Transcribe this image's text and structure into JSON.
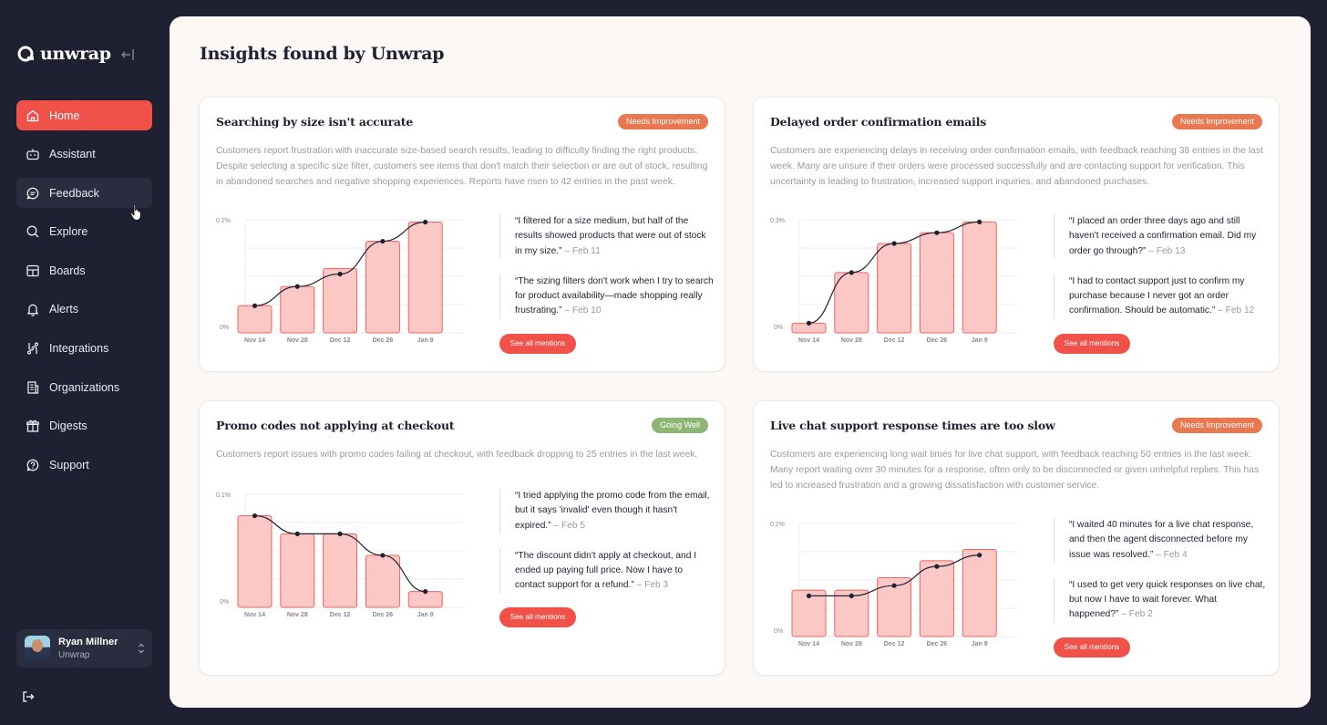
{
  "brand": {
    "name": "unwrap"
  },
  "colors": {
    "accent": "#f0524a",
    "needs_improvement": "#e8784f",
    "going_well": "#8fb575",
    "sidebar_bg": "#1f2132"
  },
  "nav": [
    {
      "label": "Home",
      "icon": "home-icon"
    },
    {
      "label": "Assistant",
      "icon": "robot-icon"
    },
    {
      "label": "Feedback",
      "icon": "chat-bubble-icon"
    },
    {
      "label": "Explore",
      "icon": "search-icon"
    },
    {
      "label": "Boards",
      "icon": "boards-icon"
    },
    {
      "label": "Alerts",
      "icon": "bell-icon"
    },
    {
      "label": "Integrations",
      "icon": "integrations-icon"
    },
    {
      "label": "Organizations",
      "icon": "building-icon"
    },
    {
      "label": "Digests",
      "icon": "gift-icon"
    },
    {
      "label": "Support",
      "icon": "help-chat-icon"
    }
  ],
  "user": {
    "name": "Ryan Millner",
    "org": "Unwrap"
  },
  "page_title": "Insights found by Unwrap",
  "see_all_label": "See all mentions",
  "cards": [
    {
      "title": "Searching by size isn't accurate",
      "status": "Needs Improvement",
      "description": "Customers report frustration with inaccurate size-based search results, leading to difficulty finding the right products. Despite selecting a specific size filter, customers see items that don't match their selection or are out of stock, resulting in abandoned searches and negative shopping experiences. Reports have risen to 42 entries in the past week.",
      "quotes": [
        {
          "text": "“I filtered for a size medium, but half of the results showed products that were out of stock in my size.”",
          "date": " – Feb 11"
        },
        {
          "text": "“The sizing filters don't work when I try to search for product availability—made shopping really frustrating.”",
          "date": " – Feb 10"
        }
      ]
    },
    {
      "title": "Delayed order confirmation emails",
      "status": "Needs Improvement",
      "description": "Customers are experiencing delays in receiving order confirmation emails, with feedback reaching 38 entries in the last week. Many are unsure if their orders were processed successfully and are contacting support for verification. This uncertainty is leading to frustration, increased support inquiries, and abandoned purchases.",
      "quotes": [
        {
          "text": "“I placed an order three days ago and still haven't received a confirmation email. Did my order go through?”",
          "date": " – Feb 13"
        },
        {
          "text": "“I had to contact support just to confirm my purchase because I never got an order confirmation. Should be automatic.”",
          "date": " – Feb 12"
        }
      ]
    },
    {
      "title": "Promo codes not applying at checkout",
      "status": "Going Well",
      "description": "Customers report issues with promo codes failing at checkout, with feedback dropping to 25 entries in the last week.",
      "quotes": [
        {
          "text": "“I tried applying the promo code from the email, but it says 'invalid' even though it hasn't expired.”",
          "date": " – Feb 5"
        },
        {
          "text": "“The discount didn't apply at checkout, and I ended up paying full price. Now I have to contact support for a refund.”",
          "date": " – Feb 3"
        }
      ]
    },
    {
      "title": "Live chat support response times are too slow",
      "status": "Needs Improvement",
      "description": "Customers are experiencing long wait times for live chat support, with feedback reaching 50 entries in the last week. Many report waiting over 30 minutes for a response, often only to be disconnected or given unhelpful replies. This has led to increased frustration and a growing dissatisfaction with customer service.",
      "quotes": [
        {
          "text": "“I waited 40 minutes for a live chat response, and then the agent disconnected before my issue was resolved.”",
          "date": " – Feb 4"
        },
        {
          "text": "“I used to get very quick responses on live chat, but now I have to wait forever. What happened?”",
          "date": " – Feb 2"
        }
      ]
    }
  ],
  "chart_data": [
    {
      "type": "bar",
      "categories": [
        "Nov 14",
        "Nov 28",
        "Dec 12",
        "Dec 26",
        "Jan 9"
      ],
      "values": [
        0.024,
        0.041,
        0.057,
        0.081,
        0.098
      ],
      "line_values": [
        0.024,
        0.041,
        0.052,
        0.081,
        0.098
      ],
      "ytick_labels": [
        "0.2%",
        "0%"
      ],
      "ylim": [
        0,
        0.1
      ]
    },
    {
      "type": "bar",
      "categories": [
        "Nov 14",
        "Nov 28",
        "Dec 12",
        "Dec 26",
        "Jan 9"
      ],
      "values": [
        0.09,
        0.56,
        0.83,
        0.93,
        1.03
      ],
      "line_values": [
        0.09,
        0.56,
        0.83,
        0.93,
        1.03
      ],
      "ytick_labels": [
        "0.3%",
        "0%"
      ],
      "ylim": [
        0,
        1.05
      ]
    },
    {
      "type": "bar",
      "categories": [
        "Nov 14",
        "Nov 28",
        "Dec 12",
        "Dec 26",
        "Jan 9"
      ],
      "values": [
        0.81,
        0.65,
        0.65,
        0.46,
        0.14
      ],
      "line_values": [
        0.81,
        0.65,
        0.65,
        0.46,
        0.14
      ],
      "ytick_labels": [
        "0.1%",
        "0%"
      ],
      "ylim": [
        0,
        1.0
      ]
    },
    {
      "type": "bar",
      "categories": [
        "Nov 14",
        "Nov 28",
        "Dec 12",
        "Dec 26",
        "Jan 9"
      ],
      "values": [
        0.41,
        0.41,
        0.52,
        0.67,
        0.77
      ],
      "line_values": [
        0.36,
        0.36,
        0.45,
        0.62,
        0.72
      ],
      "ytick_labels": [
        "0.2%",
        "0%"
      ],
      "ylim": [
        0,
        1.0
      ]
    }
  ]
}
